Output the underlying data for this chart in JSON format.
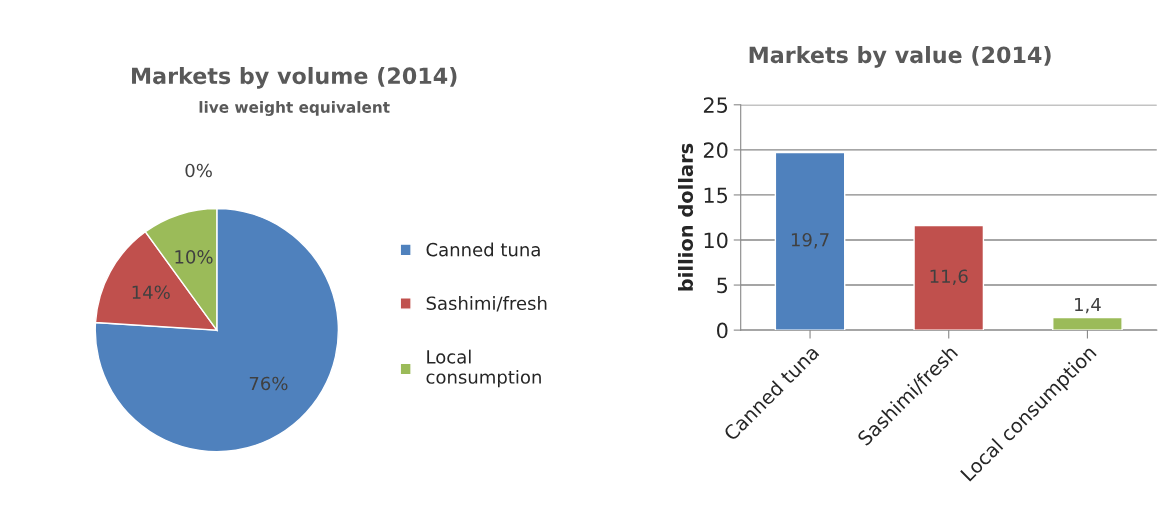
{
  "chart_data": [
    {
      "type": "pie",
      "title": "Markets by volume (2014)",
      "subtitle": "live weight equivalent",
      "categories": [
        "Canned tuna",
        "Sashimi/fresh",
        "Local consumption"
      ],
      "values": [
        76,
        14,
        10
      ],
      "value_labels": [
        "76%",
        "14%",
        "10%"
      ],
      "colors": [
        "#4f81bd",
        "#c0504d",
        "#9bbb59"
      ],
      "annotations": [
        "0%"
      ],
      "legend": "right"
    },
    {
      "type": "bar",
      "title": "Markets by value (2014)",
      "ylabel": "billion dollars",
      "categories": [
        "Canned tuna",
        "Sashimi/fresh",
        "Local consumption"
      ],
      "values": [
        19.7,
        11.6,
        1.4
      ],
      "value_labels": [
        "19,7",
        "11,6",
        "1,4"
      ],
      "colors": [
        "#4f81bd",
        "#c0504d",
        "#9bbb59"
      ],
      "ylim": [
        0,
        25
      ],
      "yticks": [
        0,
        5,
        10,
        15,
        20,
        25
      ],
      "grid": "y",
      "legend": false
    }
  ]
}
